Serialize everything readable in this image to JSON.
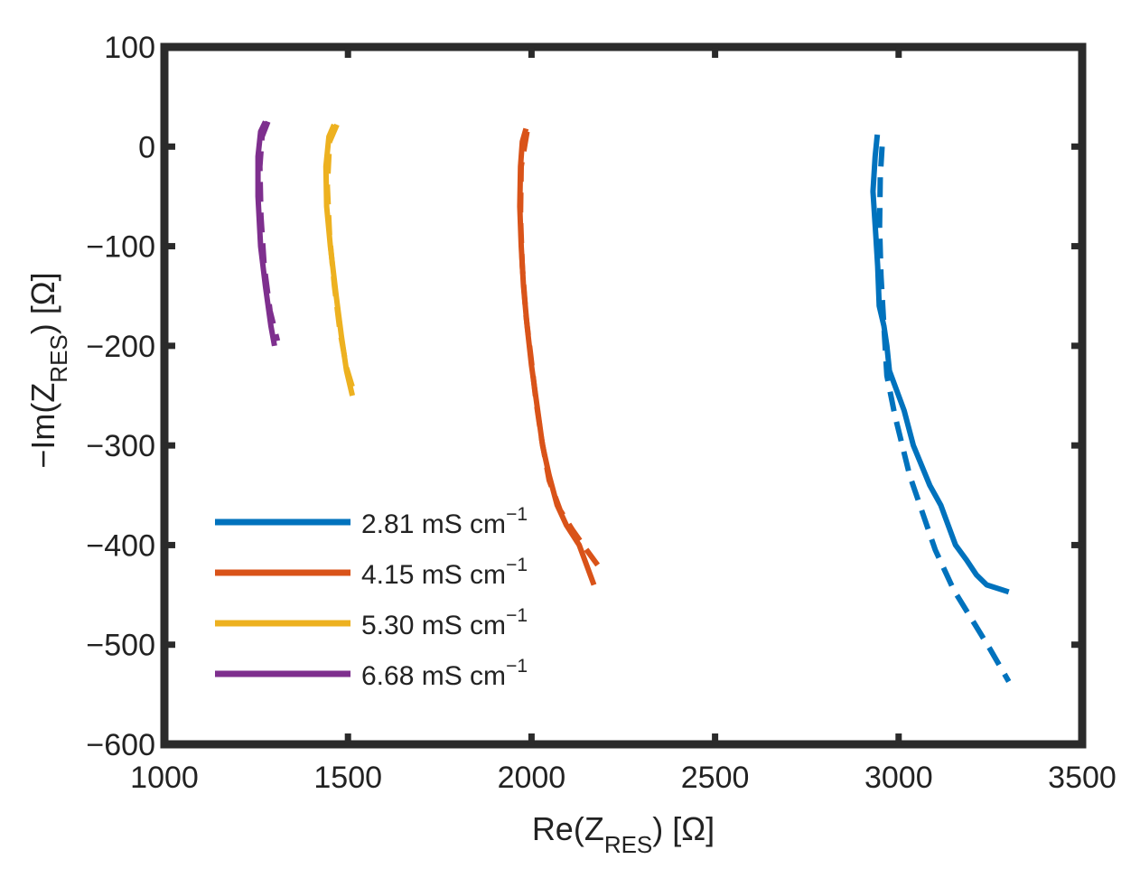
{
  "chart_data": {
    "type": "line",
    "title": "",
    "xlabel": {
      "main": "Re(Z",
      "sub": "RES",
      "tail": ") [Ω]"
    },
    "ylabel": {
      "main": "−Im(Z",
      "sub": "RES",
      "tail": ") [Ω]"
    },
    "xlim": [
      1000,
      3500
    ],
    "ylim": [
      -600,
      100
    ],
    "xticks": [
      1000,
      1500,
      2000,
      2500,
      3000,
      3500
    ],
    "yticks": [
      -600,
      -500,
      -400,
      -300,
      -200,
      -100,
      0,
      100
    ],
    "xtick_labels": [
      "1000",
      "1500",
      "2000",
      "2500",
      "3000",
      "3500"
    ],
    "ytick_labels": [
      "−600",
      "−500",
      "−400",
      "−300",
      "−200",
      "−100",
      "0",
      "100"
    ],
    "grid": false,
    "legend_position": "bottom-left",
    "series": [
      {
        "name": "2.81 mS cm",
        "unit_sup": "−1",
        "color": "#0072BD",
        "solid": [
          [
            2942,
            12
          ],
          [
            2936,
            -10
          ],
          [
            2930,
            -45
          ],
          [
            2938,
            -90
          ],
          [
            2943,
            -120
          ],
          [
            2947,
            -160
          ],
          [
            2960,
            -180
          ],
          [
            2968,
            -200
          ],
          [
            2975,
            -225
          ],
          [
            3000,
            -250
          ],
          [
            3015,
            -265
          ],
          [
            3040,
            -300
          ],
          [
            3085,
            -340
          ],
          [
            3115,
            -360
          ],
          [
            3130,
            -375
          ],
          [
            3155,
            -400
          ],
          [
            3185,
            -415
          ],
          [
            3212,
            -430
          ],
          [
            3240,
            -440
          ],
          [
            3300,
            -447
          ]
        ],
        "dashed": [
          [
            2955,
            0
          ],
          [
            2950,
            -30
          ],
          [
            2948,
            -80
          ],
          [
            2952,
            -130
          ],
          [
            2960,
            -180
          ],
          [
            2968,
            -230
          ],
          [
            2990,
            -270
          ],
          [
            3030,
            -330
          ],
          [
            3100,
            -405
          ],
          [
            3150,
            -445
          ],
          [
            3200,
            -475
          ],
          [
            3250,
            -505
          ],
          [
            3300,
            -537
          ]
        ]
      },
      {
        "name": "4.15 mS cm",
        "unit_sup": "−1",
        "color": "#D95319",
        "solid": [
          [
            1985,
            18
          ],
          [
            1975,
            5
          ],
          [
            1970,
            -20
          ],
          [
            1968,
            -60
          ],
          [
            1972,
            -100
          ],
          [
            1978,
            -140
          ],
          [
            1988,
            -180
          ],
          [
            2000,
            -220
          ],
          [
            2015,
            -260
          ],
          [
            2030,
            -300
          ],
          [
            2048,
            -330
          ],
          [
            2070,
            -360
          ],
          [
            2095,
            -380
          ],
          [
            2130,
            -400
          ],
          [
            2155,
            -425
          ],
          [
            2170,
            -440
          ]
        ],
        "dashed": [
          [
            1988,
            15
          ],
          [
            1972,
            -20
          ],
          [
            1970,
            -70
          ],
          [
            1975,
            -120
          ],
          [
            1985,
            -170
          ],
          [
            1998,
            -210
          ],
          [
            2012,
            -255
          ],
          [
            2028,
            -295
          ],
          [
            2048,
            -335
          ],
          [
            2078,
            -365
          ],
          [
            2112,
            -385
          ],
          [
            2150,
            -405
          ],
          [
            2180,
            -420
          ]
        ]
      },
      {
        "name": "5.30 mS cm",
        "unit_sup": "−1",
        "color": "#EDB120",
        "solid": [
          [
            1462,
            22
          ],
          [
            1448,
            10
          ],
          [
            1440,
            -20
          ],
          [
            1442,
            -60
          ],
          [
            1452,
            -100
          ],
          [
            1468,
            -150
          ],
          [
            1482,
            -190
          ],
          [
            1496,
            -225
          ],
          [
            1512,
            -250
          ]
        ],
        "dashed": [
          [
            1470,
            22
          ],
          [
            1450,
            5
          ],
          [
            1444,
            -40
          ],
          [
            1450,
            -90
          ],
          [
            1463,
            -140
          ],
          [
            1478,
            -185
          ],
          [
            1496,
            -222
          ],
          [
            1515,
            -245
          ]
        ]
      },
      {
        "name": "6.68 mS cm",
        "unit_sup": "−1",
        "color": "#7E2F8E",
        "solid": [
          [
            1275,
            25
          ],
          [
            1262,
            15
          ],
          [
            1255,
            -10
          ],
          [
            1255,
            -50
          ],
          [
            1262,
            -100
          ],
          [
            1275,
            -140
          ],
          [
            1290,
            -180
          ],
          [
            1300,
            -200
          ]
        ],
        "dashed": [
          [
            1282,
            25
          ],
          [
            1266,
            10
          ],
          [
            1260,
            -20
          ],
          [
            1263,
            -70
          ],
          [
            1272,
            -120
          ],
          [
            1288,
            -165
          ],
          [
            1308,
            -195
          ]
        ]
      }
    ]
  }
}
